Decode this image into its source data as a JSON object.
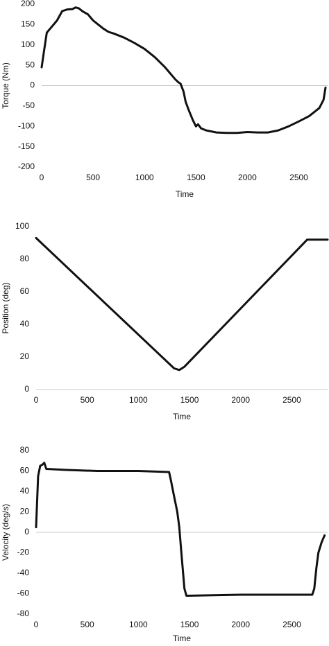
{
  "chart_data": [
    {
      "type": "line",
      "x_label": "Time",
      "y_label": "Torque (Nm)",
      "xlim": [
        0,
        2780
      ],
      "ylim": [
        -200,
        200
      ],
      "xticks": [
        0,
        500,
        1000,
        1500,
        2000,
        2500
      ],
      "yticks": [
        -200,
        -150,
        -100,
        -50,
        0,
        50,
        100,
        150,
        200
      ],
      "color": "#111111",
      "x": [
        0,
        20,
        50,
        100,
        150,
        200,
        250,
        300,
        330,
        360,
        400,
        450,
        500,
        550,
        600,
        650,
        700,
        800,
        900,
        1000,
        1100,
        1200,
        1300,
        1330,
        1350,
        1380,
        1400,
        1430,
        1470,
        1500,
        1520,
        1550,
        1600,
        1700,
        1800,
        1900,
        2000,
        2100,
        2200,
        2300,
        2400,
        2500,
        2600,
        2700,
        2740,
        2760
      ],
      "values": [
        45,
        80,
        130,
        145,
        160,
        183,
        187,
        188,
        192,
        190,
        182,
        175,
        160,
        150,
        140,
        132,
        128,
        118,
        105,
        90,
        70,
        45,
        15,
        8,
        5,
        -15,
        -40,
        -60,
        -85,
        -100,
        -95,
        -105,
        -110,
        -115,
        -116,
        -116,
        -114,
        -115,
        -115,
        -110,
        -100,
        -88,
        -75,
        -55,
        -35,
        -5
      ]
    },
    {
      "type": "line",
      "x_label": "Time",
      "y_label": "Position (deg)",
      "xlim": [
        0,
        2850
      ],
      "ylim": [
        0,
        100
      ],
      "xticks": [
        0,
        500,
        1000,
        1500,
        2000,
        2500
      ],
      "yticks": [
        0,
        20,
        40,
        60,
        80,
        100
      ],
      "color": "#111111",
      "x": [
        0,
        1350,
        1400,
        1450,
        2650,
        2850
      ],
      "values": [
        93,
        13,
        12,
        14,
        92,
        92
      ]
    },
    {
      "type": "line",
      "x_label": "Time",
      "y_label": "Velocity (deg/s)",
      "xlim": [
        0,
        2850
      ],
      "ylim": [
        -80,
        80
      ],
      "xticks": [
        0,
        500,
        1000,
        1500,
        2000,
        2500
      ],
      "yticks": [
        -80,
        -60,
        -40,
        -20,
        0,
        20,
        40,
        60,
        80
      ],
      "color": "#111111",
      "x": [
        0,
        20,
        40,
        60,
        80,
        100,
        300,
        600,
        1000,
        1300,
        1320,
        1350,
        1380,
        1400,
        1420,
        1450,
        1470,
        2000,
        2700,
        2720,
        2740,
        2760,
        2790,
        2820
      ],
      "values": [
        5,
        55,
        65,
        66,
        68,
        62,
        61,
        60,
        60,
        59,
        50,
        35,
        20,
        5,
        -20,
        -55,
        -62,
        -61,
        -61,
        -55,
        -35,
        -20,
        -10,
        -3
      ]
    }
  ]
}
